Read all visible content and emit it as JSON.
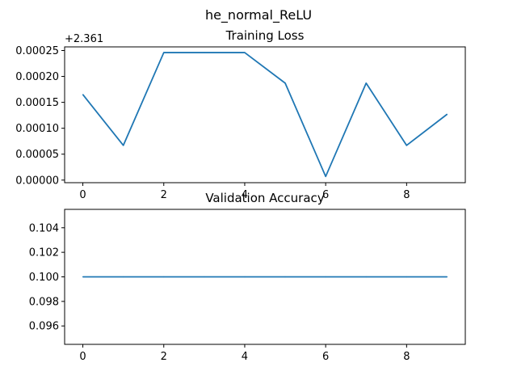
{
  "figure": {
    "suptitle": "he_normal_ReLU",
    "line_color": "#1f77b4"
  },
  "chart_data": [
    {
      "type": "line",
      "title": "Training Loss",
      "xlabel": "",
      "ylabel": "",
      "y_offset_label": "+2.361",
      "x": [
        0,
        1,
        2,
        3,
        4,
        5,
        6,
        7,
        8,
        9
      ],
      "xlim": [
        -0.45,
        9.45
      ],
      "xticks": [
        0,
        2,
        4,
        6,
        8
      ],
      "xtick_labels": [
        "0",
        "2",
        "4",
        "6",
        "8"
      ],
      "ylim": [
        -5e-06,
        0.000257
      ],
      "yticks": [
        0.0,
        5e-05,
        0.0001,
        0.00015,
        0.0002,
        0.00025
      ],
      "ytick_labels": [
        "0.00000",
        "0.00005",
        "0.00010",
        "0.00015",
        "0.00020",
        "0.00025"
      ],
      "series": [
        {
          "values": [
            0.000165,
            6.7e-05,
            0.000246,
            0.000246,
            0.000246,
            0.000187,
            7e-06,
            0.000187,
            6.7e-05,
            0.000127
          ]
        }
      ],
      "grid": false
    },
    {
      "type": "line",
      "title": "Validation Accuracy",
      "xlabel": "",
      "ylabel": "",
      "x": [
        0,
        1,
        2,
        3,
        4,
        5,
        6,
        7,
        8,
        9
      ],
      "xlim": [
        -0.45,
        9.45
      ],
      "xticks": [
        0,
        2,
        4,
        6,
        8
      ],
      "xtick_labels": [
        "0",
        "2",
        "4",
        "6",
        "8"
      ],
      "ylim": [
        0.0945,
        0.1055
      ],
      "yticks": [
        0.096,
        0.098,
        0.1,
        0.102,
        0.104
      ],
      "ytick_labels": [
        "0.096",
        "0.098",
        "0.100",
        "0.102",
        "0.104"
      ],
      "series": [
        {
          "values": [
            0.1,
            0.1,
            0.1,
            0.1,
            0.1,
            0.1,
            0.1,
            0.1,
            0.1,
            0.1
          ]
        }
      ],
      "grid": false
    }
  ]
}
